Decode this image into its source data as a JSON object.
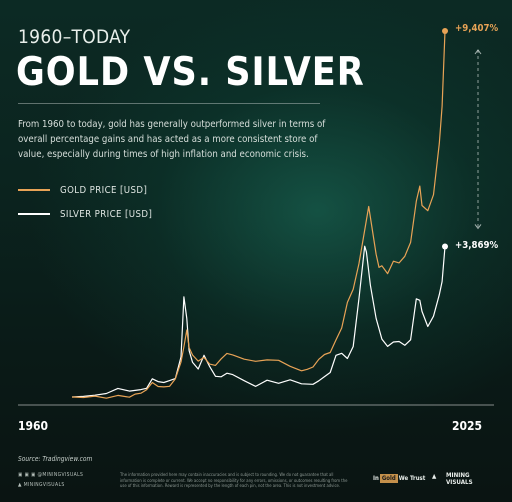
{
  "header": {
    "supertitle": "1960–TODAY",
    "title": "GOLD VS. SILVER",
    "subtitle": "From 1960 to today, gold has generally outperformed silver in terms of overall percentage gains and has acted as a more consistent store of value, especially during times of high inflation and economic crisis."
  },
  "colors": {
    "gold": "#e8a356",
    "silver": "#ffffff",
    "accent": "#1c7862",
    "background": "#0a1613"
  },
  "chart_data": {
    "type": "line",
    "title": "GOLD VS. SILVER",
    "xlabel": "",
    "ylabel": "",
    "xlim": [
      1960,
      2025
    ],
    "ylim": [
      0,
      9407
    ],
    "y_unit": "percent gain since 1960",
    "x_tick_labels": [
      "1960",
      "2025"
    ],
    "legend": {
      "placement": "top-left",
      "entries": [
        "GOLD PRICE [USD]",
        "SILVER PRICE [USD]"
      ]
    },
    "grid": false,
    "end_labels": {
      "gold": "+9,407%",
      "silver": "+3,869%"
    },
    "series": [
      {
        "name": "GOLD PRICE [USD]",
        "color": "#e8a356",
        "x": [
          1960,
          1962,
          1964,
          1966,
          1968,
          1970,
          1971,
          1972,
          1973,
          1974,
          1975,
          1976,
          1977,
          1978,
          1979,
          1979.5,
          1980,
          1980.4,
          1981,
          1982,
          1983,
          1984,
          1985,
          1986,
          1987,
          1988,
          1990,
          1992,
          1994,
          1996,
          1998,
          2000,
          2001,
          2002,
          2003,
          2004,
          2005,
          2006,
          2007,
          2008,
          2009,
          2010,
          2011,
          2011.7,
          2012,
          2013,
          2013.5,
          2014,
          2015,
          2016,
          2017,
          2018,
          2019,
          2020,
          2020.6,
          2021,
          2022,
          2023,
          2024,
          2024.5,
          2025
        ],
        "y": [
          0,
          0,
          0,
          0,
          10,
          20,
          60,
          100,
          200,
          350,
          300,
          230,
          300,
          450,
          900,
          1300,
          1700,
          1300,
          1050,
          950,
          1000,
          850,
          820,
          960,
          1150,
          1050,
          1000,
          900,
          960,
          950,
          770,
          700,
          680,
          800,
          950,
          1100,
          1150,
          1450,
          1800,
          2400,
          2800,
          3400,
          4300,
          4900,
          4600,
          3700,
          3300,
          3400,
          3150,
          3500,
          3450,
          3600,
          4000,
          5000,
          5450,
          4900,
          4800,
          5200,
          6500,
          7500,
          9407
        ]
      },
      {
        "name": "SILVER PRICE [USD]",
        "color": "#ffffff",
        "x": [
          1960,
          1962,
          1964,
          1966,
          1968,
          1970,
          1972,
          1973,
          1974,
          1975,
          1976,
          1977,
          1978,
          1979,
          1979.5,
          1980,
          1980.4,
          1981,
          1982,
          1983,
          1984,
          1985,
          1986,
          1987,
          1988,
          1990,
          1992,
          1994,
          1996,
          1998,
          2000,
          2002,
          2003,
          2004,
          2005,
          2006,
          2007,
          2008,
          2009,
          2010,
          2011,
          2011.3,
          2012,
          2013,
          2014,
          2015,
          2016,
          2017,
          2018,
          2019,
          2020,
          2020.6,
          2021,
          2022,
          2023,
          2024,
          2024.5,
          2025
        ],
        "y": [
          0,
          0,
          50,
          100,
          200,
          180,
          160,
          250,
          450,
          400,
          380,
          400,
          500,
          1000,
          2600,
          2000,
          1200,
          900,
          700,
          1100,
          750,
          560,
          500,
          620,
          580,
          400,
          300,
          400,
          380,
          420,
          350,
          330,
          400,
          550,
          600,
          1100,
          1100,
          1000,
          1300,
          2500,
          3900,
          3700,
          2900,
          2000,
          1500,
          1300,
          1400,
          1450,
          1300,
          1500,
          2500,
          2500,
          2200,
          1800,
          2100,
          2600,
          3000,
          3869
        ]
      }
    ]
  },
  "footer": {
    "source": "Source: Tradingview.com",
    "social": "@MININGVISUALS",
    "brand": "MININGVISUALS",
    "disclaimer": "The information provided here may contain inaccuracies and is subject to rounding. We do not guarantee that all information is complete or current. We accept no responsibility for any errors, omissions, or outcomes resulting from the use of this information. Reward is represented by the length of each pin, not the area. This is not investment advice.",
    "logo_ingold_a": "In",
    "logo_ingold_b": "Gold",
    "logo_ingold_c": "We Trust",
    "logo_mv_line1": "MINING",
    "logo_mv_line2": "VISUALS"
  }
}
